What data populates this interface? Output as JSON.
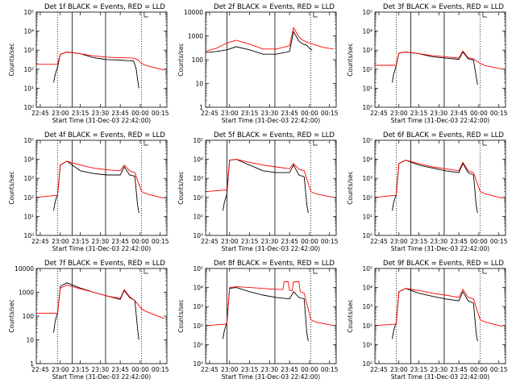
{
  "colors": {
    "events": "#000000",
    "lld": "#ff0000",
    "axis": "#000000",
    "background": "#ffffff"
  },
  "x_ticks": [
    "22:45",
    "23:00",
    "23:15",
    "23:30",
    "23:45",
    "00:00",
    "00:15"
  ],
  "chart_data": [
    {
      "type": "line",
      "title": "Det 1f BLACK = Events, RED = LLD",
      "xlabel": "Start Time (31-Dec-03 22:42:00)",
      "ylabel": "Counts/sec",
      "ylim": [
        1,
        100000
      ],
      "yscale": "log",
      "y_ticks": [
        "10⁰",
        "10¹",
        "10²",
        "10³",
        "10⁴",
        "10⁵"
      ],
      "vlines_solid": [
        "23:09",
        "23:34"
      ],
      "vlines_dotted": [
        "22:58",
        "00:01"
      ],
      "series": [
        {
          "name": "Events",
          "x": [
            "22:55",
            "22:56",
            "22:57",
            "22:58",
            "23:00",
            "23:05",
            "23:15",
            "23:25",
            "23:35",
            "23:45",
            "23:50",
            "23:55",
            "23:57",
            "23:58",
            "23:59"
          ],
          "y": [
            20,
            45,
            80,
            130,
            600,
            800,
            650,
            400,
            320,
            300,
            280,
            270,
            100,
            30,
            10
          ]
        },
        {
          "name": "LLD",
          "x": [
            "22:42",
            "22:58",
            "23:00",
            "23:05",
            "23:15",
            "23:25",
            "23:35",
            "23:45",
            "23:55",
            "23:58",
            "00:01",
            "00:05",
            "00:18"
          ],
          "y": [
            180,
            180,
            600,
            800,
            650,
            500,
            430,
            400,
            380,
            320,
            200,
            150,
            90
          ]
        }
      ]
    },
    {
      "type": "line",
      "title": "Det 2f BLACK = Events, RED = LLD",
      "xlabel": "Start Time (31-Dec-03 22:42:00)",
      "ylabel": "Counts/sec",
      "ylim": [
        1,
        10000
      ],
      "yscale": "log",
      "y_ticks": [
        "1",
        "10",
        "100",
        "1000",
        "10000"
      ],
      "vlines_solid": [
        "22:58",
        "23:34"
      ],
      "vlines_dotted": [
        "00:01"
      ],
      "series": [
        {
          "name": "Events",
          "x": [
            "22:42",
            "22:50",
            "22:58",
            "23:05",
            "23:15",
            "23:25",
            "23:35",
            "23:45",
            "23:48",
            "23:52",
            "23:55",
            "23:58",
            "00:00",
            "00:02"
          ],
          "y": [
            200,
            220,
            260,
            350,
            260,
            170,
            170,
            220,
            1500,
            600,
            450,
            400,
            300,
            250
          ]
        },
        {
          "name": "LLD",
          "x": [
            "22:42",
            "22:50",
            "22:58",
            "23:05",
            "23:15",
            "23:25",
            "23:35",
            "23:45",
            "23:48",
            "23:52",
            "23:55",
            "00:00",
            "00:10",
            "00:18"
          ],
          "y": [
            230,
            300,
            500,
            650,
            450,
            280,
            280,
            380,
            2200,
            900,
            650,
            500,
            330,
            280
          ]
        }
      ]
    },
    {
      "type": "line",
      "title": "Det 3f BLACK = Events, RED = LLD",
      "xlabel": "Start Time (31-Dec-03 22:42:00)",
      "ylabel": "Counts/sec",
      "ylim": [
        1,
        100000
      ],
      "yscale": "log",
      "y_ticks": [
        "10⁰",
        "10¹",
        "10²",
        "10³",
        "10⁴",
        "10⁵"
      ],
      "vlines_solid": [
        "23:09",
        "23:34"
      ],
      "vlines_dotted": [
        "22:58",
        "00:01"
      ],
      "series": [
        {
          "name": "Events",
          "x": [
            "22:55",
            "22:56",
            "22:57",
            "22:58",
            "23:00",
            "23:05",
            "23:15",
            "23:25",
            "23:35",
            "23:45",
            "23:48",
            "23:52",
            "23:56",
            "23:58",
            "23:59"
          ],
          "y": [
            20,
            50,
            90,
            150,
            700,
            800,
            650,
            450,
            380,
            330,
            800,
            350,
            300,
            40,
            15
          ]
        },
        {
          "name": "LLD",
          "x": [
            "22:42",
            "22:58",
            "23:00",
            "23:05",
            "23:15",
            "23:25",
            "23:35",
            "23:45",
            "23:48",
            "23:52",
            "23:56",
            "00:01",
            "00:05",
            "00:18"
          ],
          "y": [
            160,
            160,
            700,
            800,
            650,
            520,
            450,
            380,
            900,
            400,
            350,
            200,
            150,
            100
          ]
        }
      ]
    },
    {
      "type": "line",
      "title": "Det 4f BLACK = Events, RED = LLD",
      "xlabel": "Start Time (31-Dec-03 22:42:00)",
      "ylabel": "Counts/sec",
      "ylim": [
        1,
        100000
      ],
      "yscale": "log",
      "y_ticks": [
        "10⁰",
        "10¹",
        "10²",
        "10³",
        "10⁴",
        "10⁵"
      ],
      "vlines_solid": [
        "23:09",
        "23:34"
      ],
      "vlines_dotted": [
        "22:58",
        "00:01"
      ],
      "series": [
        {
          "name": "Events",
          "x": [
            "22:55",
            "22:56",
            "22:57",
            "22:58",
            "23:00",
            "23:05",
            "23:15",
            "23:25",
            "23:35",
            "23:45",
            "23:48",
            "23:52",
            "23:56",
            "23:58",
            "23:59"
          ],
          "y": [
            20,
            50,
            90,
            130,
            5000,
            8000,
            2500,
            1800,
            1500,
            1500,
            4000,
            1500,
            1300,
            40,
            15
          ]
        },
        {
          "name": "LLD",
          "x": [
            "22:42",
            "22:58",
            "23:00",
            "23:05",
            "23:15",
            "23:25",
            "23:35",
            "23:45",
            "23:48",
            "23:52",
            "23:56",
            "00:01",
            "00:05",
            "00:18"
          ],
          "y": [
            100,
            130,
            5000,
            8000,
            5000,
            3500,
            2800,
            2500,
            5000,
            2500,
            2000,
            200,
            150,
            90
          ]
        }
      ]
    },
    {
      "type": "line",
      "title": "Det 5f BLACK = Events, RED = LLD",
      "xlabel": "Start Time (31-Dec-03 22:42:00)",
      "ylabel": "Counts/sec",
      "ylim": [
        1,
        100000
      ],
      "yscale": "log",
      "y_ticks": [
        "10⁰",
        "10¹",
        "10²",
        "10³",
        "10⁴",
        "10⁵"
      ],
      "vlines_solid": [
        "22:58",
        "23:34"
      ],
      "vlines_dotted": [
        "00:01"
      ],
      "series": [
        {
          "name": "Events",
          "x": [
            "22:55",
            "22:56",
            "22:57",
            "22:58",
            "23:00",
            "23:05",
            "23:15",
            "23:25",
            "23:35",
            "23:45",
            "23:48",
            "23:52",
            "23:56",
            "23:58",
            "23:59"
          ],
          "y": [
            20,
            50,
            90,
            150,
            9000,
            10000,
            5000,
            2500,
            2000,
            2000,
            5000,
            1500,
            1200,
            40,
            15
          ]
        },
        {
          "name": "LLD",
          "x": [
            "22:42",
            "22:58",
            "23:00",
            "23:05",
            "23:15",
            "23:25",
            "23:35",
            "23:45",
            "23:48",
            "23:52",
            "23:56",
            "00:01",
            "00:05",
            "00:18"
          ],
          "y": [
            200,
            250,
            9000,
            10000,
            7000,
            5000,
            4000,
            3200,
            6000,
            3000,
            2500,
            200,
            150,
            100
          ]
        }
      ]
    },
    {
      "type": "line",
      "title": "Det 6f BLACK = Events, RED = LLD",
      "xlabel": "Start Time (31-Dec-03 22:42:00)",
      "ylabel": "Counts/sec",
      "ylim": [
        1,
        100000
      ],
      "yscale": "log",
      "y_ticks": [
        "10⁰",
        "10¹",
        "10²",
        "10³",
        "10⁴",
        "10⁵"
      ],
      "vlines_solid": [
        "23:09",
        "23:34"
      ],
      "vlines_dotted": [
        "22:58",
        "00:01"
      ],
      "series": [
        {
          "name": "Events",
          "x": [
            "22:55",
            "22:56",
            "22:57",
            "22:58",
            "23:00",
            "23:05",
            "23:15",
            "23:25",
            "23:35",
            "23:45",
            "23:48",
            "23:52",
            "23:56",
            "23:58",
            "23:59"
          ],
          "y": [
            20,
            50,
            90,
            130,
            6000,
            9000,
            5000,
            3500,
            2500,
            2000,
            6000,
            2000,
            1500,
            40,
            15
          ]
        },
        {
          "name": "LLD",
          "x": [
            "22:42",
            "22:58",
            "23:00",
            "23:05",
            "23:15",
            "23:25",
            "23:35",
            "23:45",
            "23:48",
            "23:52",
            "23:56",
            "00:01",
            "00:05",
            "00:18"
          ],
          "y": [
            100,
            130,
            6000,
            9000,
            6000,
            4000,
            3200,
            2500,
            7000,
            2500,
            2000,
            200,
            150,
            90
          ]
        }
      ]
    },
    {
      "type": "line",
      "title": "Det 7f BLACK = Events, RED = LLD",
      "xlabel": "Start Time (31-Dec-03 22:42:00)",
      "ylabel": "Counts/sec",
      "ylim": [
        1,
        10000
      ],
      "yscale": "log",
      "y_ticks": [
        "1",
        "10",
        "100",
        "1000",
        "10000"
      ],
      "vlines_solid": [
        "23:09",
        "23:34"
      ],
      "vlines_dotted": [
        "22:58",
        "00:01"
      ],
      "series": [
        {
          "name": "Events",
          "x": [
            "22:55",
            "22:56",
            "22:57",
            "22:58",
            "23:00",
            "23:05",
            "23:15",
            "23:25",
            "23:35",
            "23:45",
            "23:48",
            "23:52",
            "23:56",
            "23:58",
            "23:59"
          ],
          "y": [
            20,
            50,
            90,
            130,
            1800,
            2500,
            1500,
            1000,
            700,
            500,
            1200,
            600,
            450,
            30,
            10
          ]
        },
        {
          "name": "LLD",
          "x": [
            "22:42",
            "22:58",
            "23:00",
            "23:05",
            "23:15",
            "23:25",
            "23:35",
            "23:45",
            "23:48",
            "23:52",
            "23:56",
            "00:01",
            "00:05",
            "00:18"
          ],
          "y": [
            130,
            130,
            1500,
            2000,
            1400,
            1000,
            700,
            550,
            1300,
            650,
            450,
            200,
            150,
            80
          ]
        }
      ]
    },
    {
      "type": "line",
      "title": "Det 8f BLACK = Events, RED = LLD",
      "xlabel": "Start Time (31-Dec-03 22:42:00)",
      "ylabel": "Counts/sec",
      "ylim": [
        1,
        100000
      ],
      "yscale": "log",
      "y_ticks": [
        "10⁰",
        "10¹",
        "10²",
        "10³",
        "10⁴",
        "10⁵"
      ],
      "vlines_solid": [
        "22:58",
        "23:34"
      ],
      "vlines_dotted": [
        "00:01"
      ],
      "series": [
        {
          "name": "Events",
          "x": [
            "22:55",
            "22:56",
            "22:57",
            "22:58",
            "23:00",
            "23:05",
            "23:15",
            "23:25",
            "23:35",
            "23:45",
            "23:48",
            "23:52",
            "23:56",
            "23:58",
            "23:59"
          ],
          "y": [
            20,
            50,
            90,
            150,
            9000,
            10000,
            6000,
            4000,
            3000,
            2500,
            6000,
            3000,
            2500,
            40,
            15
          ]
        },
        {
          "name": "LLD",
          "x": [
            "22:42",
            "22:58",
            "23:00",
            "23:05",
            "23:15",
            "23:25",
            "23:35",
            "23:40",
            "23:41",
            "23:44",
            "23:45",
            "23:47",
            "23:48",
            "23:52",
            "23:53",
            "23:56",
            "00:01",
            "00:05",
            "00:18"
          ],
          "y": [
            100,
            120,
            10000,
            11000,
            10000,
            9000,
            8000,
            8000,
            20000,
            20000,
            7000,
            7000,
            20000,
            20000,
            6000,
            5000,
            200,
            150,
            100
          ]
        }
      ]
    },
    {
      "type": "line",
      "title": "Det 9f BLACK = Events, RED = LLD",
      "xlabel": "Start Time (31-Dec-03 22:42:00)",
      "ylabel": "Counts/sec",
      "ylim": [
        1,
        100000
      ],
      "yscale": "log",
      "y_ticks": [
        "10⁰",
        "10¹",
        "10²",
        "10³",
        "10⁴",
        "10⁵"
      ],
      "vlines_solid": [
        "23:09",
        "23:34"
      ],
      "vlines_dotted": [
        "22:58",
        "00:01"
      ],
      "series": [
        {
          "name": "Events",
          "x": [
            "22:55",
            "22:56",
            "22:57",
            "22:58",
            "23:00",
            "23:05",
            "23:15",
            "23:25",
            "23:35",
            "23:45",
            "23:48",
            "23:52",
            "23:56",
            "23:58",
            "23:59"
          ],
          "y": [
            20,
            50,
            90,
            130,
            6000,
            9000,
            5000,
            3500,
            2500,
            2000,
            6000,
            2000,
            1500,
            40,
            15
          ]
        },
        {
          "name": "LLD",
          "x": [
            "22:42",
            "22:58",
            "23:00",
            "23:05",
            "23:15",
            "23:25",
            "23:35",
            "23:45",
            "23:48",
            "23:52",
            "23:56",
            "00:01",
            "00:05",
            "00:18"
          ],
          "y": [
            100,
            120,
            6000,
            9000,
            7000,
            5000,
            4000,
            3000,
            8000,
            3000,
            2500,
            200,
            150,
            90
          ]
        }
      ]
    }
  ]
}
